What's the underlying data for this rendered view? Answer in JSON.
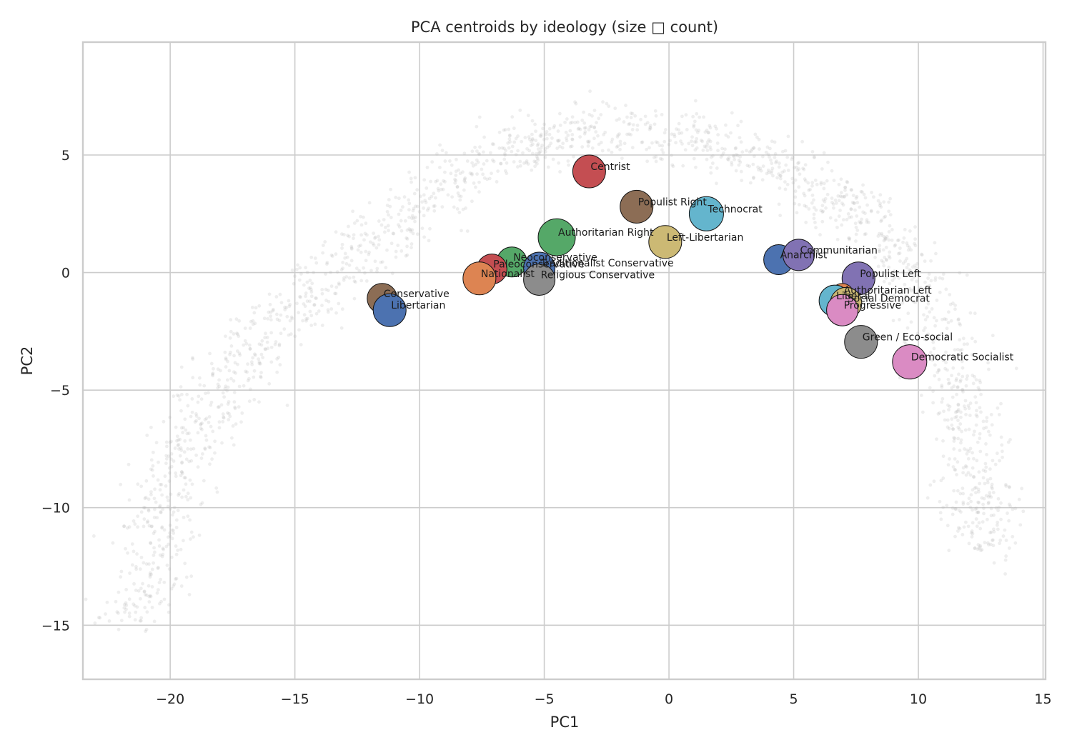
{
  "chart_data": {
    "type": "scatter",
    "title": "PCA centroids by ideology (size □ count)",
    "xlabel": "PC1",
    "ylabel": "PC2",
    "xlim": [
      -23.5,
      15.1
    ],
    "ylim": [
      -17.3,
      9.8
    ],
    "xticks": [
      -20,
      -15,
      -10,
      -5,
      0,
      5,
      10,
      15
    ],
    "yticks": [
      5,
      0,
      -5,
      -10,
      -15
    ],
    "xtick_labels": [
      "−20",
      "−15",
      "−10",
      "−5",
      "0",
      "5",
      "10",
      "15"
    ],
    "ytick_labels": [
      "5",
      "0",
      "−5",
      "−10",
      "−15"
    ],
    "grid": true,
    "background_color": "#b0b0b0",
    "series": [
      {
        "label": "Centrist",
        "x": -3.2,
        "y": 4.3,
        "color": "#c44e52",
        "size": 23
      },
      {
        "label": "Populist Right",
        "x": -1.3,
        "y": 2.8,
        "color": "#8c6d55",
        "size": 23
      },
      {
        "label": "Technocrat",
        "x": 1.5,
        "y": 2.5,
        "color": "#64b5cd",
        "size": 24
      },
      {
        "label": "Authoritarian Right",
        "x": -4.5,
        "y": 1.5,
        "color": "#55a868",
        "size": 26
      },
      {
        "label": "Left-Libertarian",
        "x": -0.15,
        "y": 1.3,
        "color": "#ccb974",
        "size": 23
      },
      {
        "label": "Anarchist",
        "x": 4.4,
        "y": 0.55,
        "color": "#4c72b0",
        "size": 21
      },
      {
        "label": "Communitarian",
        "x": 5.2,
        "y": 0.75,
        "color": "#8172b3",
        "size": 22
      },
      {
        "label": "Neoconservative",
        "x": -6.3,
        "y": 0.45,
        "color": "#55a868",
        "size": 21
      },
      {
        "label": "Paleoconservative",
        "x": -7.1,
        "y": 0.15,
        "color": "#c44e52",
        "size": 21
      },
      {
        "label": "Traditionalist Conservative",
        "x": -5.2,
        "y": 0.2,
        "color": "#4c72b0",
        "size": 22
      },
      {
        "label": "Nationalist",
        "x": -7.6,
        "y": -0.25,
        "color": "#dd8452",
        "size": 23
      },
      {
        "label": "Religious Conservative",
        "x": -5.2,
        "y": -0.3,
        "color": "#8c8c8c",
        "size": 22
      },
      {
        "label": "Populist Left",
        "x": 7.6,
        "y": -0.25,
        "color": "#8172b3",
        "size": 23
      },
      {
        "label": "Conservative",
        "x": -11.5,
        "y": -1.1,
        "color": "#8c6d55",
        "size": 21
      },
      {
        "label": "Libertarian",
        "x": -11.2,
        "y": -1.6,
        "color": "#4c72b0",
        "size": 23
      },
      {
        "label": "Authoritarian Left",
        "x": 6.95,
        "y": -0.95,
        "color": "#dd8452",
        "size": 16
      },
      {
        "label": "Liberal",
        "x": 6.65,
        "y": -1.2,
        "color": "#64b5cd",
        "size": 22
      },
      {
        "label": "Social Democrat",
        "x": 7.1,
        "y": -1.3,
        "color": "#ccb974",
        "size": 22
      },
      {
        "label": "Progressive",
        "x": 6.95,
        "y": -1.6,
        "color": "#da8bc3",
        "size": 22
      },
      {
        "label": "Green / Eco-social",
        "x": 7.7,
        "y": -2.95,
        "color": "#8c8c8c",
        "size": 23
      },
      {
        "label": "Democratic Socialist",
        "x": 9.65,
        "y": -3.8,
        "color": "#da8bc3",
        "size": 24
      }
    ]
  }
}
